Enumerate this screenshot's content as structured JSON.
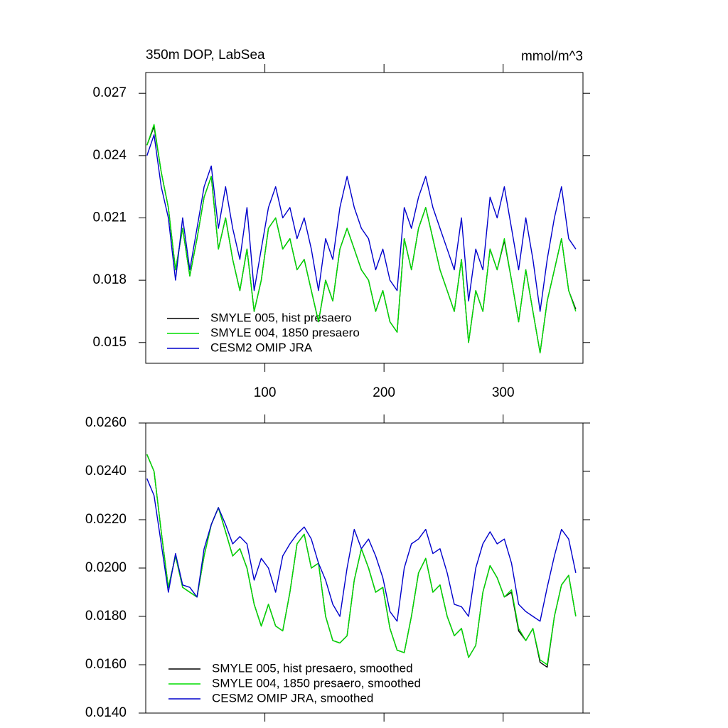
{
  "chart_data": [
    {
      "type": "line",
      "title": "350m DOP, LabSea",
      "units_label": "mmol/m^3",
      "x": [
        1,
        7,
        13,
        19,
        25,
        31,
        37,
        43,
        49,
        55,
        61,
        67,
        73,
        79,
        85,
        91,
        97,
        103,
        109,
        115,
        121,
        127,
        133,
        139,
        145,
        151,
        157,
        163,
        169,
        175,
        181,
        187,
        193,
        199,
        205,
        211,
        217,
        223,
        229,
        235,
        241,
        247,
        253,
        259,
        265,
        271,
        277,
        283,
        289,
        295,
        301,
        307,
        313,
        319,
        325,
        331,
        337,
        343,
        349,
        355,
        361
      ],
      "xlim": [
        0,
        367
      ],
      "xticks": [
        100,
        200,
        300
      ],
      "show_xtick_labels": true,
      "ylim": [
        0.014,
        0.028
      ],
      "yticks": [
        0.015,
        0.018,
        0.021,
        0.024,
        0.027
      ],
      "series": [
        {
          "name": "SMYLE 005, hist presaero",
          "color": "#000000",
          "values": [
            0.0245,
            0.0254,
            0.0232,
            0.0215,
            0.0185,
            0.0205,
            0.0182,
            0.02,
            0.022,
            0.023,
            0.0195,
            0.021,
            0.019,
            0.0175,
            0.0195,
            0.0165,
            0.018,
            0.0205,
            0.021,
            0.0195,
            0.02,
            0.0185,
            0.019,
            0.0175,
            0.016,
            0.018,
            0.017,
            0.0195,
            0.0205,
            0.0195,
            0.0185,
            0.018,
            0.0165,
            0.0175,
            0.016,
            0.0155,
            0.02,
            0.0185,
            0.0205,
            0.0215,
            0.02,
            0.0185,
            0.0175,
            0.0165,
            0.019,
            0.015,
            0.0175,
            0.0165,
            0.0195,
            0.0185,
            0.0199,
            0.018,
            0.016,
            0.0185,
            0.0165,
            0.0145,
            0.017,
            0.0185,
            0.02,
            0.0175,
            0.0166
          ]
        },
        {
          "name": "SMYLE 004, 1850 presaero",
          "color": "#00dd00",
          "values": [
            0.0245,
            0.0255,
            0.0232,
            0.0215,
            0.0185,
            0.0205,
            0.0182,
            0.02,
            0.022,
            0.023,
            0.0195,
            0.021,
            0.019,
            0.0175,
            0.0195,
            0.0165,
            0.018,
            0.0205,
            0.021,
            0.0195,
            0.02,
            0.0185,
            0.019,
            0.0175,
            0.016,
            0.018,
            0.017,
            0.0195,
            0.0205,
            0.0195,
            0.0185,
            0.018,
            0.0165,
            0.0175,
            0.016,
            0.0155,
            0.02,
            0.0185,
            0.0205,
            0.0215,
            0.02,
            0.0185,
            0.0175,
            0.0165,
            0.019,
            0.015,
            0.0175,
            0.0165,
            0.0195,
            0.0185,
            0.02,
            0.018,
            0.016,
            0.0185,
            0.0165,
            0.0145,
            0.017,
            0.0185,
            0.02,
            0.0175,
            0.0165
          ]
        },
        {
          "name": "CESM2 OMIP JRA",
          "color": "#0000cc",
          "values": [
            0.024,
            0.025,
            0.0225,
            0.021,
            0.018,
            0.021,
            0.0185,
            0.0205,
            0.0225,
            0.0235,
            0.0205,
            0.0225,
            0.0205,
            0.019,
            0.0215,
            0.0175,
            0.0195,
            0.0215,
            0.0225,
            0.021,
            0.0215,
            0.02,
            0.021,
            0.0195,
            0.0175,
            0.02,
            0.019,
            0.0215,
            0.023,
            0.0215,
            0.0205,
            0.02,
            0.0185,
            0.0195,
            0.018,
            0.0175,
            0.0215,
            0.0205,
            0.022,
            0.023,
            0.0215,
            0.0205,
            0.0195,
            0.0185,
            0.021,
            0.017,
            0.0195,
            0.0185,
            0.022,
            0.021,
            0.0225,
            0.0205,
            0.0185,
            0.021,
            0.019,
            0.0165,
            0.019,
            0.021,
            0.0225,
            0.02,
            0.0195
          ]
        }
      ]
    },
    {
      "type": "line",
      "x": [
        1,
        7,
        13,
        19,
        25,
        31,
        37,
        43,
        49,
        55,
        61,
        67,
        73,
        79,
        85,
        91,
        97,
        103,
        109,
        115,
        121,
        127,
        133,
        139,
        145,
        151,
        157,
        163,
        169,
        175,
        181,
        187,
        193,
        199,
        205,
        211,
        217,
        223,
        229,
        235,
        241,
        247,
        253,
        259,
        265,
        271,
        277,
        283,
        289,
        295,
        301,
        307,
        313,
        319,
        325,
        331,
        337,
        343,
        349,
        355,
        361
      ],
      "xlim": [
        0,
        367
      ],
      "xticks": [
        100,
        200,
        300
      ],
      "show_xtick_labels": false,
      "ylim": [
        0.014,
        0.026
      ],
      "yticks": [
        {
          "value": 0.014,
          "label": "0.0140"
        },
        {
          "value": 0.016,
          "label": "0.0160"
        },
        {
          "value": 0.018,
          "label": "0.0180"
        },
        {
          "value": 0.02,
          "label": "0.0200"
        },
        {
          "value": 0.022,
          "label": "0.0220"
        },
        {
          "value": 0.024,
          "label": "0.0240"
        },
        {
          "value": 0.026,
          "label": "0.0260"
        }
      ],
      "series": [
        {
          "name": "SMYLE 005, hist presaero, smoothed",
          "color": "#000000",
          "values": [
            0.0247,
            0.024,
            0.0215,
            0.0192,
            0.0205,
            0.0192,
            0.019,
            0.0188,
            0.0205,
            0.0218,
            0.0225,
            0.0215,
            0.0205,
            0.0208,
            0.02,
            0.0185,
            0.0176,
            0.0185,
            0.0176,
            0.0174,
            0.019,
            0.021,
            0.0214,
            0.02,
            0.0202,
            0.018,
            0.017,
            0.0169,
            0.0172,
            0.0195,
            0.0208,
            0.02,
            0.019,
            0.0192,
            0.0175,
            0.0166,
            0.0165,
            0.018,
            0.0198,
            0.0204,
            0.019,
            0.0193,
            0.018,
            0.0172,
            0.0175,
            0.0163,
            0.0168,
            0.019,
            0.0201,
            0.0196,
            0.0188,
            0.019,
            0.0174,
            0.017,
            0.0175,
            0.0161,
            0.0159,
            0.018,
            0.0193,
            0.0197,
            0.018
          ]
        },
        {
          "name": "SMYLE 004, 1850 presaero, smoothed",
          "color": "#00dd00",
          "values": [
            0.0247,
            0.024,
            0.0215,
            0.0192,
            0.0205,
            0.0192,
            0.019,
            0.0188,
            0.0205,
            0.0218,
            0.0225,
            0.0215,
            0.0205,
            0.0208,
            0.02,
            0.0185,
            0.0176,
            0.0185,
            0.0176,
            0.0174,
            0.019,
            0.021,
            0.0214,
            0.02,
            0.0202,
            0.018,
            0.017,
            0.0169,
            0.0172,
            0.0195,
            0.0208,
            0.02,
            0.019,
            0.0192,
            0.0175,
            0.0166,
            0.0165,
            0.018,
            0.0198,
            0.0204,
            0.019,
            0.0193,
            0.018,
            0.0172,
            0.0175,
            0.0163,
            0.0168,
            0.019,
            0.0201,
            0.0196,
            0.0188,
            0.0191,
            0.0175,
            0.017,
            0.0175,
            0.0162,
            0.016,
            0.018,
            0.0193,
            0.0197,
            0.018
          ]
        },
        {
          "name": "CESM2 OMIP JRA, smoothed",
          "color": "#0000cc",
          "values": [
            0.0237,
            0.023,
            0.021,
            0.019,
            0.0206,
            0.0193,
            0.0192,
            0.0188,
            0.0208,
            0.0218,
            0.0225,
            0.0218,
            0.021,
            0.0213,
            0.021,
            0.0195,
            0.0204,
            0.02,
            0.019,
            0.0205,
            0.021,
            0.0214,
            0.0217,
            0.0212,
            0.0202,
            0.0195,
            0.0185,
            0.018,
            0.02,
            0.0216,
            0.0208,
            0.0212,
            0.0205,
            0.0196,
            0.0182,
            0.0178,
            0.02,
            0.021,
            0.0212,
            0.0216,
            0.0206,
            0.0208,
            0.0198,
            0.0185,
            0.0184,
            0.018,
            0.02,
            0.021,
            0.0215,
            0.021,
            0.0212,
            0.0202,
            0.0185,
            0.0182,
            0.018,
            0.0178,
            0.0192,
            0.0205,
            0.0216,
            0.0212,
            0.0198
          ]
        }
      ]
    }
  ]
}
